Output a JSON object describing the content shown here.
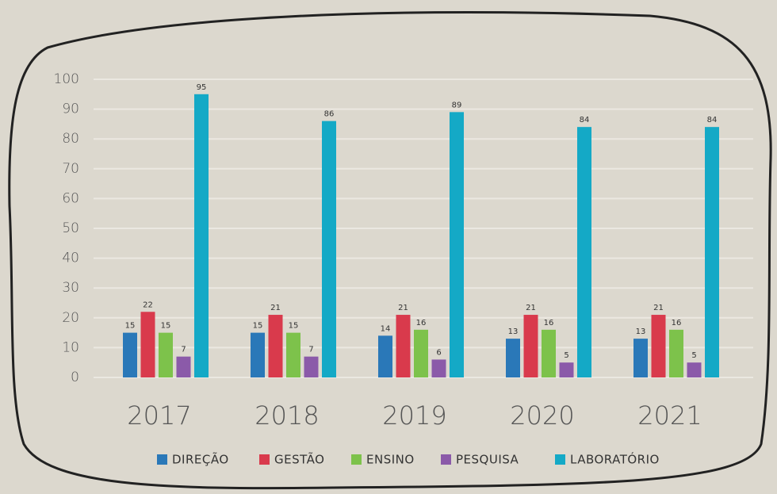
{
  "chart_data": {
    "type": "bar",
    "categories": [
      "2017",
      "2018",
      "2019",
      "2020",
      "2021"
    ],
    "series": [
      {
        "name": "DIREÇÃO",
        "color": "#2a78b8",
        "values": [
          15,
          15,
          14,
          13,
          13
        ]
      },
      {
        "name": "GESTÃO",
        "color": "#d93a4c",
        "values": [
          22,
          21,
          21,
          21,
          21
        ]
      },
      {
        "name": "ENSINO",
        "color": "#7dc24b",
        "values": [
          15,
          15,
          16,
          16,
          16
        ]
      },
      {
        "name": "PESQUISA",
        "color": "#8b5aa9",
        "values": [
          7,
          7,
          6,
          5,
          5
        ]
      },
      {
        "name": "LABORATÓRIO",
        "color": "#14a9c6",
        "values": [
          95,
          86,
          89,
          84,
          84
        ]
      }
    ],
    "ylim": [
      0,
      100
    ],
    "yticks": [
      0,
      10,
      20,
      30,
      40,
      50,
      60,
      70,
      80,
      90,
      100
    ],
    "grid": true,
    "legend": "bottom"
  }
}
